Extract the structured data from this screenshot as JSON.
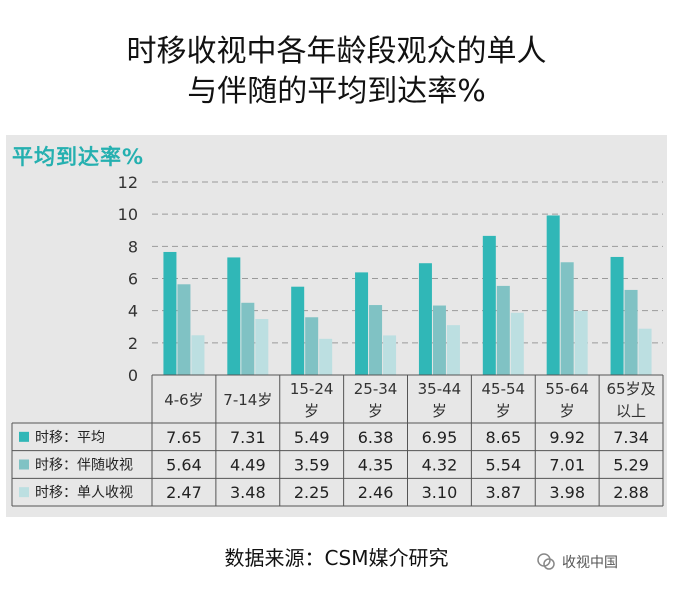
{
  "header": {
    "title_line1": "时移收视中各年龄段观众的单人",
    "title_line2": "与伴随的平均到达率%"
  },
  "footer": {
    "source": "数据来源：CSM媒介研究",
    "watermark": "收视中国"
  },
  "colors": {
    "series_avg": "#30b7b7",
    "series_accompany": "#80c2c4",
    "series_single": "#bcdfe1",
    "panel_bg": "#e7e7e7",
    "title_teal": "#25b0b0"
  },
  "chart_data": {
    "type": "bar",
    "title": "平均到达率%",
    "categories": [
      [
        "4-6岁"
      ],
      [
        "7-14岁"
      ],
      [
        "15-24",
        "岁"
      ],
      [
        "25-34",
        "岁"
      ],
      [
        "35-44",
        "岁"
      ],
      [
        "45-54",
        "岁"
      ],
      [
        "55-64",
        "岁"
      ],
      [
        "65岁及",
        "以上"
      ]
    ],
    "series": [
      {
        "name": "时移：平均",
        "values": [
          7.65,
          7.31,
          5.49,
          6.38,
          6.95,
          8.65,
          9.92,
          7.34
        ],
        "labels": [
          "7.65",
          "7.31",
          "5.49",
          "6.38",
          "6.95",
          "8.65",
          "9.92",
          "7.34"
        ]
      },
      {
        "name": "时移：伴随收视",
        "values": [
          5.64,
          4.49,
          3.59,
          4.35,
          4.32,
          5.54,
          7.01,
          5.29
        ],
        "labels": [
          "5.64",
          "4.49",
          "3.59",
          "4.35",
          "4.32",
          "5.54",
          "7.01",
          "5.29"
        ]
      },
      {
        "name": "时移：单人收视",
        "values": [
          2.47,
          3.48,
          2.25,
          2.46,
          3.1,
          3.87,
          3.98,
          2.88
        ],
        "labels": [
          "2.47",
          "3.48",
          "2.25",
          "2.46",
          "3.10",
          "3.87",
          "3.98",
          "2.88"
        ]
      }
    ],
    "ylim": [
      0,
      12
    ],
    "yticks": [
      0,
      2,
      4,
      6,
      8,
      10,
      12
    ],
    "grid": true,
    "legend": "data-table"
  }
}
